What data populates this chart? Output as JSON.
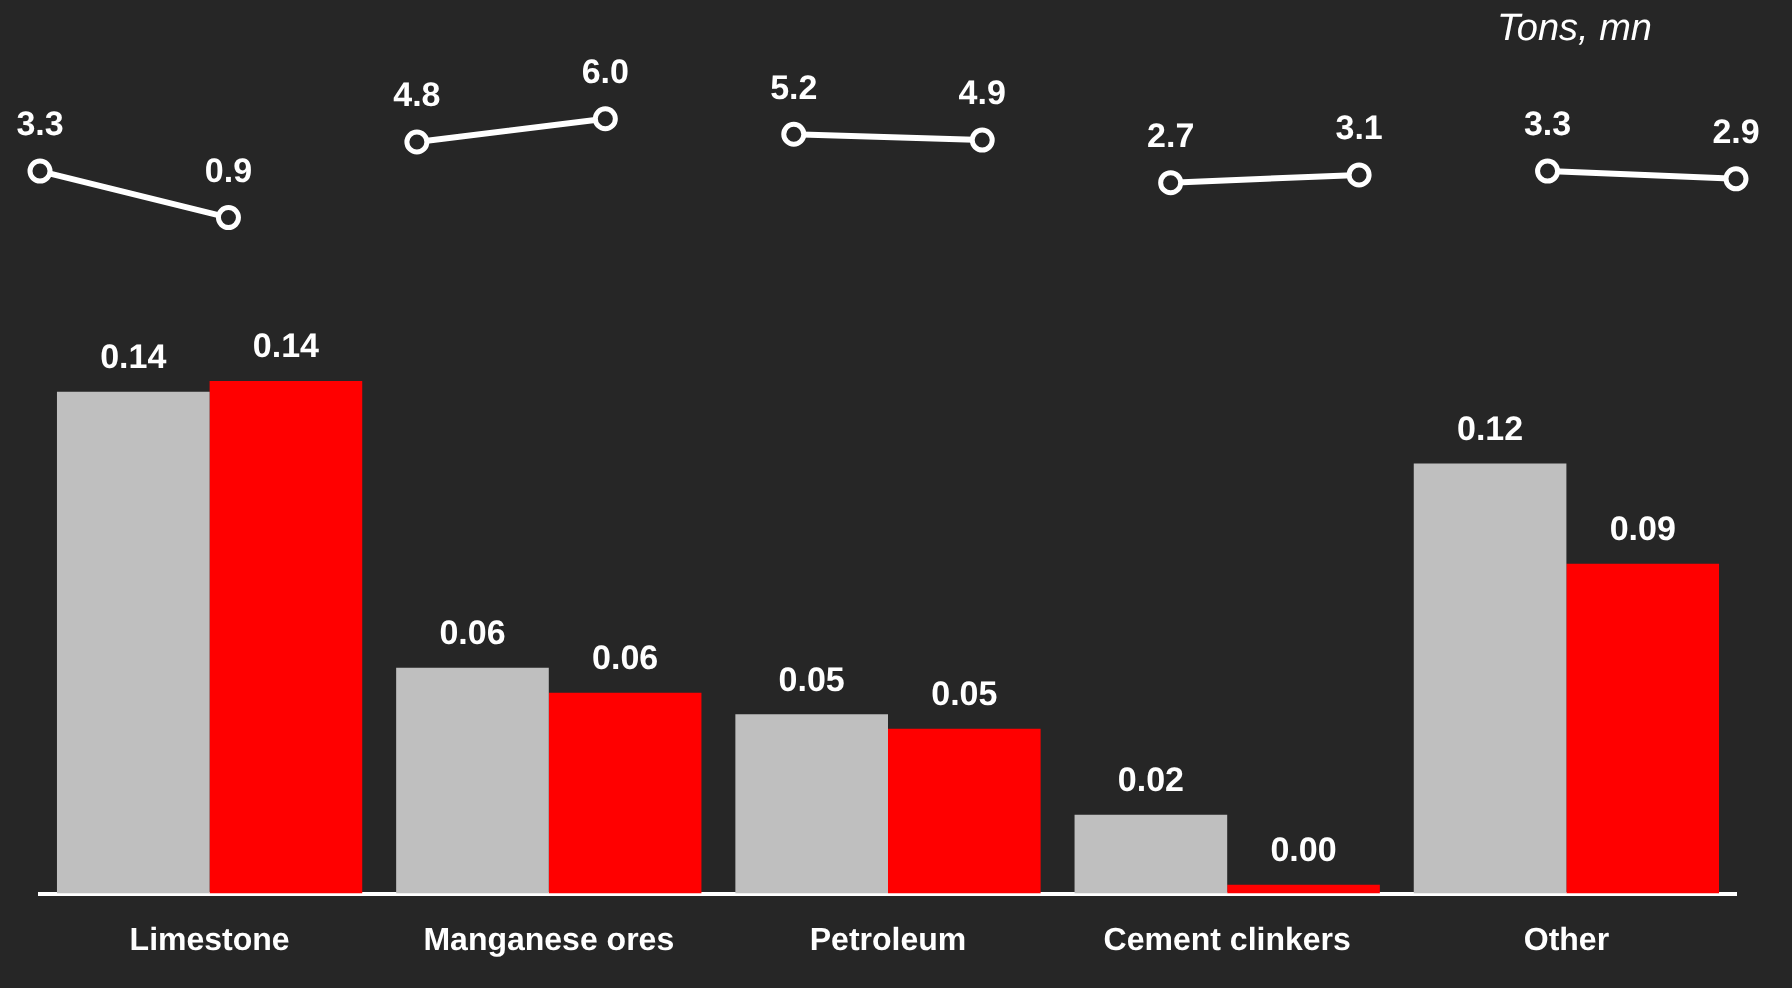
{
  "chart_data": [
    {
      "type": "bar",
      "categories": [
        "Limestone",
        "Manganese ores",
        "Petroleum",
        "Cement clinkers",
        "Other"
      ],
      "series": [
        {
          "color": "#bfbfbf",
          "values": [
            0.14,
            0.063,
            0.05,
            0.022,
            0.12
          ],
          "value_labels": [
            "0.14",
            "0.06",
            "0.05",
            "0.02",
            "0.12"
          ]
        },
        {
          "color": "#ff0000",
          "values": [
            0.143,
            0.056,
            0.046,
            0.0025,
            0.092
          ],
          "value_labels": [
            "0.14",
            "0.06",
            "0.05",
            "0.00",
            "0.09"
          ]
        }
      ],
      "legend": false,
      "tick_labels": "x"
    },
    {
      "type": "line",
      "categories": [
        null,
        null,
        null,
        null,
        null,
        null,
        null,
        null,
        null,
        null
      ],
      "series": [
        {
          "color": "#ffffff",
          "values": [
            3.3,
            0.9,
            null,
            null,
            null,
            null,
            null,
            null,
            null,
            null
          ]
        },
        {
          "color": "#ffffff",
          "values": [
            null,
            null,
            4.8,
            6.0,
            null,
            null,
            null,
            null,
            null,
            null
          ],
          "value_labels": [
            null,
            null,
            "4.8",
            "6.0",
            null,
            null,
            null,
            null,
            null,
            null
          ]
        },
        {
          "color": "#ffffff",
          "values": [
            null,
            null,
            null,
            null,
            5.2,
            4.9,
            null,
            null,
            null,
            null
          ]
        },
        {
          "color": "#ffffff",
          "values": [
            null,
            null,
            null,
            null,
            null,
            null,
            2.7,
            3.1,
            null,
            null
          ]
        },
        {
          "color": "#ffffff",
          "values": [
            null,
            null,
            null,
            null,
            null,
            null,
            null,
            null,
            3.3,
            2.9
          ]
        }
      ],
      "annotations": [
        "Tons, mn"
      ],
      "data_labels": true,
      "marker": "circle",
      "legend": false,
      "tick_labels": false
    }
  ]
}
